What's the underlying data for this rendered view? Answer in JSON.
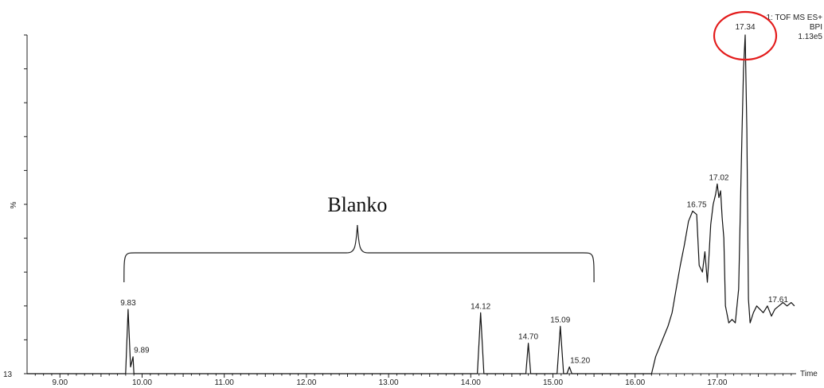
{
  "chart_data": {
    "type": "line",
    "title": "",
    "header": [
      "1: TOF MS ES+",
      "BPI",
      "1.13e5"
    ],
    "xlabel": "Time",
    "ylabel": "%",
    "y_origin_label": "13",
    "xlim": [
      8.6,
      17.96
    ],
    "ylim": [
      0,
      100
    ],
    "x_ticks": [
      "9.00",
      "10.00",
      "11.00",
      "12.00",
      "13.00",
      "14.00",
      "15.00",
      "16.00",
      "17.00"
    ],
    "x_tick_values": [
      9.0,
      10.0,
      11.0,
      12.0,
      13.0,
      14.0,
      15.0,
      16.0,
      17.0
    ],
    "series": [
      {
        "x": [
          8.6,
          9.8,
          9.83,
          9.86,
          9.87,
          9.89,
          9.9,
          14.08,
          14.12,
          14.16,
          14.67,
          14.7,
          14.73,
          15.05,
          15.09,
          15.13,
          15.17,
          15.2,
          15.23,
          16.2,
          16.25,
          16.3,
          16.35,
          16.4,
          16.45,
          16.5,
          16.55,
          16.6,
          16.65,
          16.7,
          16.75,
          16.78,
          16.82,
          16.85,
          16.88,
          16.9,
          16.92,
          16.95,
          16.98,
          17.0,
          17.02,
          17.04,
          17.06,
          17.08,
          17.1,
          17.14,
          17.18,
          17.22,
          17.26,
          17.3,
          17.32,
          17.34,
          17.36,
          17.38,
          17.4,
          17.44,
          17.48,
          17.52,
          17.56,
          17.61,
          17.66,
          17.7,
          17.75,
          17.8,
          17.85,
          17.9,
          17.94
        ],
        "y": [
          0,
          0,
          19,
          2,
          3,
          5,
          0,
          0,
          18,
          0,
          0,
          9,
          0,
          0,
          14,
          0,
          0,
          2,
          0,
          0,
          5,
          8,
          11,
          14,
          18,
          25,
          32,
          38,
          45,
          48,
          47,
          32,
          30,
          36,
          27,
          35,
          44,
          50,
          53,
          56,
          52,
          54,
          46,
          40,
          20,
          15,
          16,
          15,
          25,
          70,
          90,
          100,
          72,
          22,
          15,
          18,
          20,
          19,
          18,
          20,
          17,
          19,
          20,
          21,
          20,
          21,
          20
        ]
      }
    ],
    "peak_labels": [
      {
        "x": 9.83,
        "y": 19,
        "text": "9.83"
      },
      {
        "x": 9.89,
        "y": 5,
        "text": "9.89"
      },
      {
        "x": 14.12,
        "y": 18,
        "text": "14.12"
      },
      {
        "x": 14.7,
        "y": 9,
        "text": "14.70"
      },
      {
        "x": 15.09,
        "y": 14,
        "text": "15.09"
      },
      {
        "x": 15.2,
        "y": 2,
        "text": "15.20"
      },
      {
        "x": 16.75,
        "y": 48,
        "text": "16.75"
      },
      {
        "x": 17.02,
        "y": 56,
        "text": "17.02"
      },
      {
        "x": 17.34,
        "y": 100,
        "text": "17.34"
      },
      {
        "x": 17.61,
        "y": 20,
        "text": "17.61"
      }
    ],
    "annotation": {
      "text": "Blanko",
      "x_from": 9.78,
      "x_to": 15.5,
      "x_tip": 12.62
    },
    "highlight": {
      "x": 17.34,
      "y": 100,
      "color": "#e31b1b"
    },
    "line_color": "#111111"
  }
}
